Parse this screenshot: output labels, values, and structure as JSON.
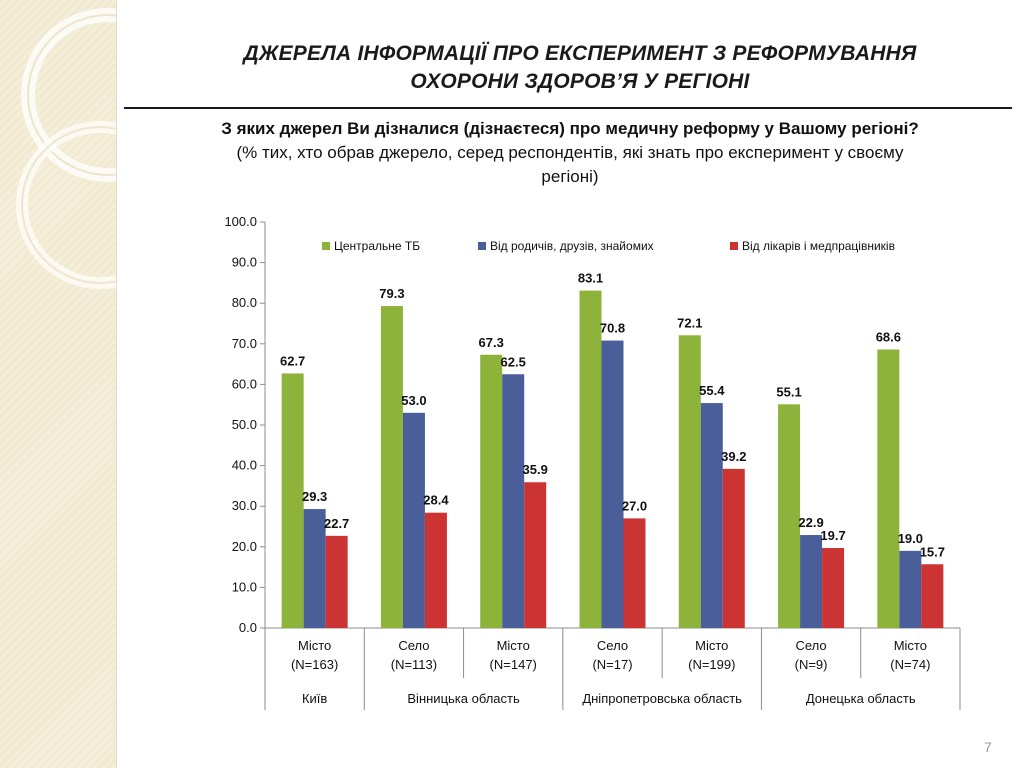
{
  "title": {
    "line1": "ДЖЕРЕЛА ІНФОРМАЦІЇ ПРО ЕКСПЕРИМЕНТ З РЕФОРМУВАННЯ",
    "line2": "ОХОРОНИ ЗДОРОВ’Я У РЕГІОНІ"
  },
  "question": {
    "main": "З яких джерел Ви дізналися (дізнаєтеся) про медичну реформу у Вашому регіоні?",
    "sub": "(% тих, хто обрав джерело, серед респондентів, які знать про експеримент у своєму регіоні)"
  },
  "page_number": "7",
  "colors": {
    "green": "#8db33b",
    "blue": "#4a5f9a",
    "red": "#cc3333",
    "side_panel": "#f4edd7",
    "grid": "#cccccc"
  },
  "chart_data": {
    "type": "bar",
    "categories": [
      {
        "label": "Місто",
        "n": "(N=163)"
      },
      {
        "label": "Село",
        "n": "(N=113)"
      },
      {
        "label": "Місто",
        "n": "(N=147)"
      },
      {
        "label": "Село",
        "n": "(N=17)"
      },
      {
        "label": "Місто",
        "n": "(N=199)"
      },
      {
        "label": "Село",
        "n": "(N=9)"
      },
      {
        "label": "Місто",
        "n": "(N=74)"
      }
    ],
    "groups": [
      {
        "label": "Київ",
        "span": 1
      },
      {
        "label": "Вінницька область",
        "span": 2
      },
      {
        "label": "Дніпропетровська область",
        "span": 2
      },
      {
        "label": "Донецька область",
        "span": 2
      }
    ],
    "series": [
      {
        "name": "Центральне ТБ",
        "color": "#8db33b",
        "values": [
          62.7,
          79.3,
          67.3,
          83.1,
          72.1,
          55.1,
          68.6
        ]
      },
      {
        "name": "Від родичів, друзів, знайомих",
        "color": "#4a5f9a",
        "values": [
          29.3,
          53.0,
          62.5,
          70.8,
          55.4,
          22.9,
          19.0
        ]
      },
      {
        "name": "Від лікарів і медпрацівників",
        "color": "#cc3333",
        "values": [
          22.7,
          28.4,
          35.9,
          27.0,
          39.2,
          19.7,
          15.7
        ]
      }
    ],
    "ylim": [
      0,
      100
    ],
    "yticks": [
      "0.0",
      "10.0",
      "20.0",
      "30.0",
      "40.0",
      "50.0",
      "60.0",
      "70.0",
      "80.0",
      "90.0",
      "100.0"
    ],
    "legend_position": "top",
    "grid": false
  }
}
